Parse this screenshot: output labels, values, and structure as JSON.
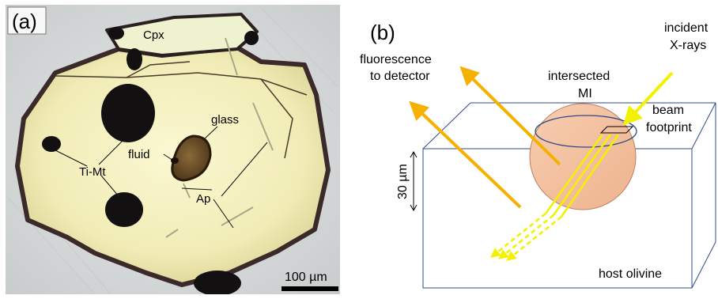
{
  "panel_a": {
    "panel_label": "(a)",
    "labels": {
      "cpx": "Cpx",
      "glass": "glass",
      "fluid": "fluid",
      "ti_mt": "Ti-Mt",
      "ap": "Ap"
    },
    "scale_bar": "100 µm"
  },
  "panel_b": {
    "panel_label": "(b)",
    "fluorescence_label_1": "fluorescence",
    "fluorescence_label_2": "to detector",
    "incident_label_1": "incident",
    "incident_label_2": "X-rays",
    "mi_label_1": "intersected",
    "mi_label_2": "MI",
    "beam_label_1": "beam",
    "beam_label_2": "footprint",
    "depth_label": "30 µm",
    "host_label": "host olivine"
  },
  "colors": {
    "crystal": "#f3f0bf",
    "background_a": "#d8dadb",
    "orange_arrow": "#f5b000",
    "yellow_beam": "#f2f200",
    "melt_inclusion": "#f4c09c",
    "box_edge": "#2f4a8a"
  }
}
